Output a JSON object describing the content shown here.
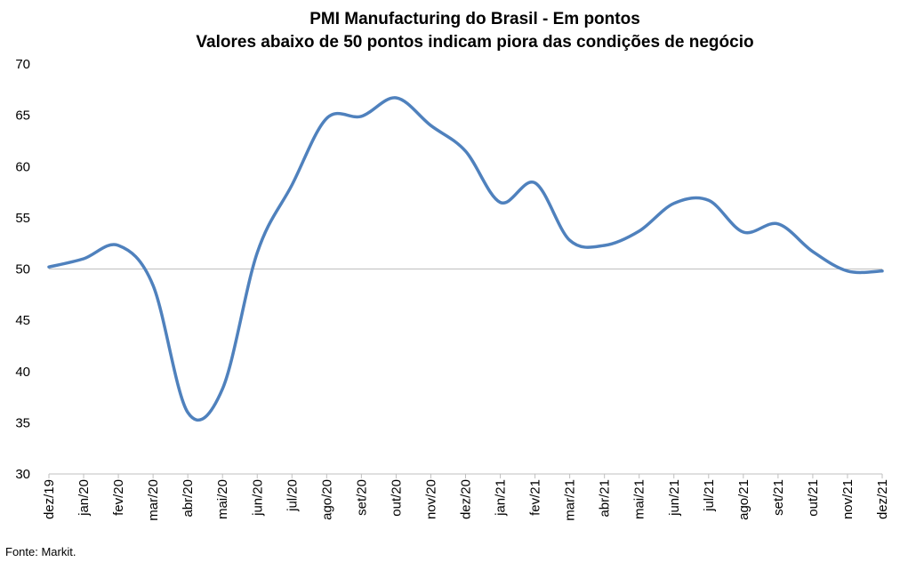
{
  "chart_data": {
    "type": "line",
    "title": "PMI Manufacturing do Brasil - Em pontos",
    "subtitle": "Valores abaixo de 50 pontos indicam piora das condições de negócio",
    "xlabel": "",
    "ylabel": "",
    "ylim": [
      30,
      70
    ],
    "yticks": [
      30,
      35,
      40,
      45,
      50,
      55,
      60,
      65,
      70
    ],
    "grid": false,
    "reference_line": 50,
    "categories": [
      "dez/19",
      "jan/20",
      "fev/20",
      "mar/20",
      "abr/20",
      "mai/20",
      "jun/20",
      "jul/20",
      "ago/20",
      "set/20",
      "out/20",
      "nov/20",
      "dez/20",
      "jan/21",
      "fev/21",
      "mar/21",
      "abr/21",
      "mai/21",
      "jun/21",
      "jul/21",
      "ago/21",
      "set/21",
      "out/21",
      "nov/21",
      "dez/21"
    ],
    "series": [
      {
        "values": [
          50.2,
          51.0,
          52.3,
          48.4,
          36.0,
          38.3,
          51.6,
          58.2,
          64.7,
          64.9,
          66.7,
          64.0,
          61.5,
          56.5,
          58.4,
          52.8,
          52.3,
          53.7,
          56.4,
          56.7,
          53.6,
          54.4,
          51.7,
          49.8,
          49.8
        ],
        "color": "#4f81bd"
      }
    ],
    "source": "Fonte: Markit."
  }
}
